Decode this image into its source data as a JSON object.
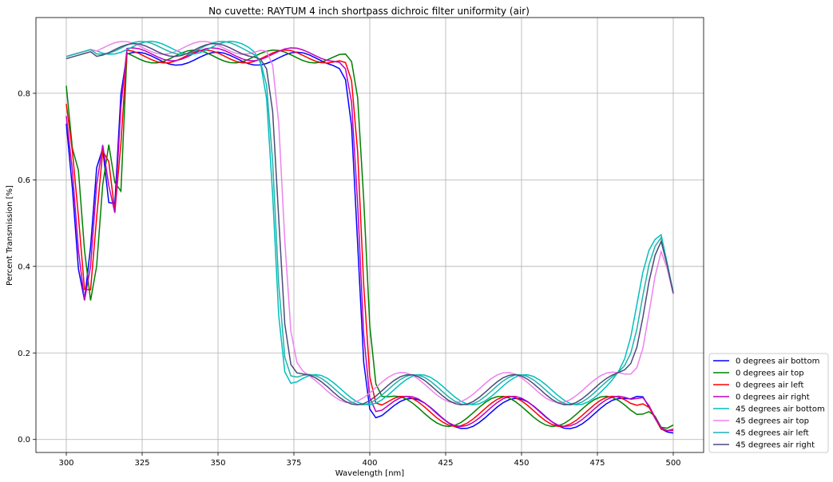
{
  "chart_data": {
    "type": "line",
    "title": "No cuvette: RAYTUM 4 inch shortpass dichroic filter uniformity (air)",
    "xlabel": "Wavelength [nm]",
    "ylabel": "Percent Transmission [%]",
    "xlim": [
      290,
      510
    ],
    "ylim": [
      -0.03,
      0.975
    ],
    "xticks": [
      300,
      325,
      350,
      375,
      400,
      425,
      450,
      475,
      500
    ],
    "yticks": [
      0.0,
      0.2,
      0.4,
      0.6,
      0.8
    ],
    "grid": true,
    "legend_position": "outside-bottom-right",
    "series": [
      {
        "name": "0 degrees air bottom",
        "color": "#0000ff",
        "shift": 0,
        "base": 0.88,
        "low": 0.025,
        "phase": 0.0
      },
      {
        "name": "0 degrees air top",
        "color": "#008000",
        "shift": 2.5,
        "base": 0.885,
        "low": 0.03,
        "phase": 2.5
      },
      {
        "name": "0 degrees air left",
        "color": "#ff0000",
        "shift": 1.3,
        "base": 0.885,
        "low": 0.03,
        "phase": 1.3
      },
      {
        "name": "0 degrees air right",
        "color": "#bf00bf",
        "shift": 0.5,
        "base": 0.89,
        "low": 0.03,
        "phase": 0.5
      },
      {
        "name": "45 degrees air bottom",
        "color": "#00bfbf",
        "shift": -27.5,
        "base": 0.905,
        "low": 0.075,
        "phase": -1.5
      },
      {
        "name": "45 degrees air top",
        "color": "#ee82ee",
        "shift": -24.5,
        "base": 0.905,
        "low": 0.08,
        "phase": 1.5
      },
      {
        "name": "45 degrees air left",
        "color": "#20b2aa",
        "shift": -27.0,
        "base": 0.905,
        "low": 0.075,
        "phase": -0.5
      },
      {
        "name": "45 degrees air right",
        "color": "#4b4b7a",
        "shift": -26.0,
        "base": 0.9,
        "low": 0.075,
        "phase": 0.3
      }
    ]
  }
}
